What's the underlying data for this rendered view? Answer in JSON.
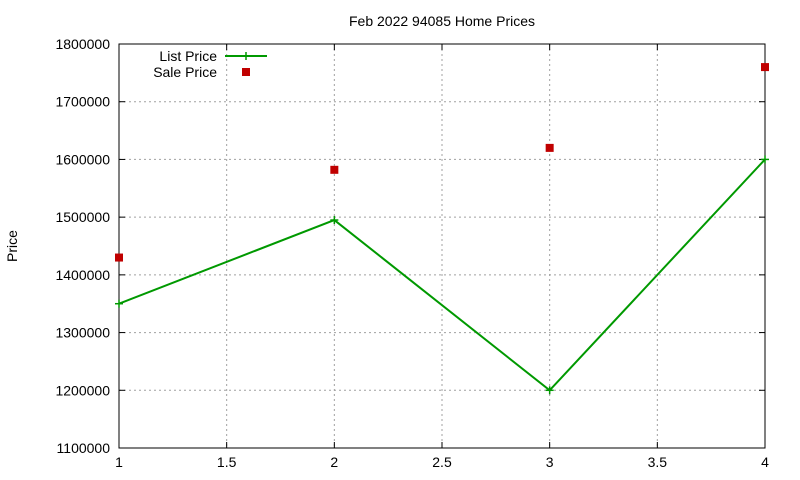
{
  "chart_data": {
    "type": "line",
    "title": "Feb 2022 94085 Home Prices",
    "xlabel": "",
    "ylabel": "Price",
    "xlim": [
      1,
      4
    ],
    "ylim": [
      1100000,
      1800000
    ],
    "x_ticks": [
      "1",
      "1.5",
      "2",
      "2.5",
      "3",
      "3.5",
      "4"
    ],
    "y_ticks": [
      "1100000",
      "1200000",
      "1300000",
      "1400000",
      "1500000",
      "1600000",
      "1700000",
      "1800000"
    ],
    "x_tick_values": [
      1,
      1.5,
      2,
      2.5,
      3,
      3.5,
      4
    ],
    "y_tick_values": [
      1100000,
      1200000,
      1300000,
      1400000,
      1500000,
      1600000,
      1700000,
      1800000
    ],
    "grid": true,
    "legend_position": "top-left",
    "series": [
      {
        "name": "List Price",
        "style": "linespoints",
        "color": "#009900",
        "marker": "plus",
        "x": [
          1,
          2,
          3,
          4
        ],
        "y": [
          1350000,
          1495000,
          1200000,
          1600000
        ]
      },
      {
        "name": "Sale Price",
        "style": "points",
        "color": "#c00000",
        "marker": "square",
        "x": [
          1,
          2,
          3,
          4
        ],
        "y": [
          1430000,
          1582000,
          1620000,
          1760000
        ]
      }
    ]
  }
}
